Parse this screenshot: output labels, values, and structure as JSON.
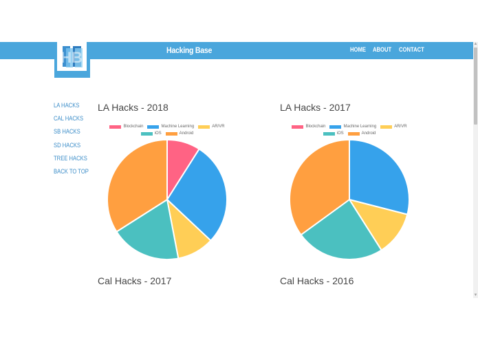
{
  "header": {
    "brand": "Hacking Base",
    "logo_text": "HB",
    "nav": [
      "HOME",
      "ABOUT",
      "CONTACT"
    ]
  },
  "sidebar": {
    "items": [
      "LA HACKS",
      "CAL HACKS",
      "SB HACKS",
      "SD HACKS",
      "TREE HACKS",
      "BACK TO TOP"
    ]
  },
  "colors": {
    "navbar": "#4aa6dc",
    "link": "#3a8cc8",
    "blockchain": "#ff6384",
    "machine_learning": "#36a2eb",
    "ar_vr": "#ffce56",
    "ios": "#4bc0c0",
    "android": "#ff9f40"
  },
  "icons": [
    "logo-mark",
    "scroll-up-arrow-icon",
    "scroll-down-arrow-icon"
  ],
  "chart_data": [
    {
      "type": "pie",
      "title": "LA Hacks - 2018",
      "categories": [
        "Blockchain",
        "Machine Learning",
        "AR/VR",
        "iOS",
        "Android"
      ],
      "values": [
        9,
        28,
        10,
        19,
        34
      ],
      "legend": "top"
    },
    {
      "type": "pie",
      "title": "LA Hacks - 2017",
      "categories": [
        "Blockchain",
        "Machine Learning",
        "AR/VR",
        "iOS",
        "Android"
      ],
      "values": [
        0,
        29,
        12,
        24,
        35
      ],
      "legend": "top"
    },
    {
      "type": "pie",
      "title": "Cal Hacks - 2017",
      "categories": [],
      "values": []
    },
    {
      "type": "pie",
      "title": "Cal Hacks - 2016",
      "categories": [],
      "values": []
    }
  ]
}
